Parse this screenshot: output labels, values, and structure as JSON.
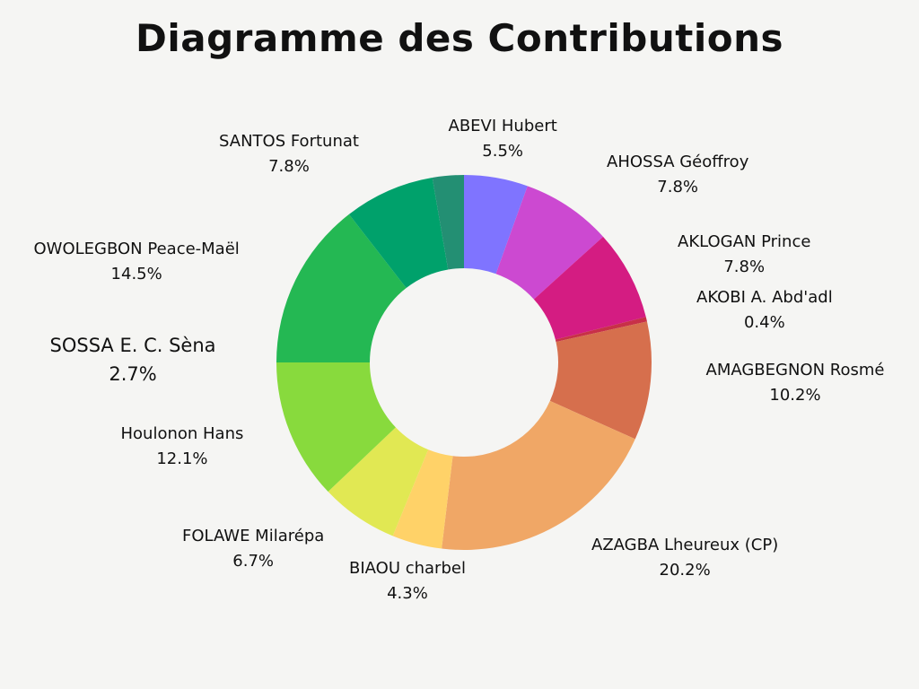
{
  "chart_data": {
    "type": "pie",
    "donut": true,
    "title": "Diagramme des Contributions",
    "series": [
      {
        "name": "ABEVI Hubert",
        "value": 5.5,
        "label": "5.5%",
        "color": "#7f74ff"
      },
      {
        "name": "AHOSSA  Géoffroy",
        "value": 7.8,
        "label": "7.8%",
        "color": "#cc49d1"
      },
      {
        "name": "AKLOGAN Prince",
        "value": 7.8,
        "label": "7.8%",
        "color": "#d41c82"
      },
      {
        "name": "AKOBI A. Abd'adl",
        "value": 0.4,
        "label": "0.4%",
        "color": "#c83048"
      },
      {
        "name": "AMAGBEGNON Rosmé",
        "value": 10.2,
        "label": "10.2%",
        "color": "#d66f4d"
      },
      {
        "name": "AZAGBA Lheureux (CP)",
        "value": 20.2,
        "label": "20.2%",
        "color": "#f0a766"
      },
      {
        "name": "BIAOU charbel",
        "value": 4.3,
        "label": "4.3%",
        "color": "#ffd268"
      },
      {
        "name": "FOLAWE Milarépa",
        "value": 6.7,
        "label": "6.7%",
        "color": "#e1e853"
      },
      {
        "name": "Houlonon Hans",
        "value": 12.1,
        "label": "12.1%",
        "color": "#88da3d"
      },
      {
        "name": "OWOLEGBON Peace-Maël",
        "value": 14.5,
        "label": "14.5%",
        "color": "#24b853"
      },
      {
        "name": "SANTOS Fortunat",
        "value": 7.8,
        "label": "7.8%",
        "color": "#00a16b"
      },
      {
        "name": "SOSSA E. C. Sèna",
        "value": 2.7,
        "label": "2.7%",
        "color": "#238f73"
      }
    ]
  }
}
